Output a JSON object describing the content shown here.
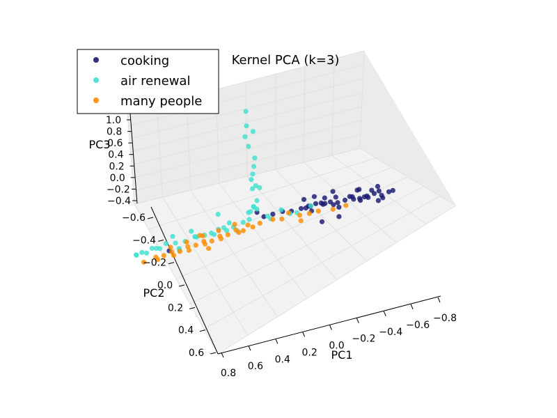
{
  "chart_data": {
    "type": "scatter",
    "title": "Kernel PCA (k=3)",
    "xlabel": "PC1",
    "ylabel": "PC2",
    "zlabel": "PC3",
    "xlim": [
      -0.8,
      0.8
    ],
    "ylim": [
      -0.6,
      0.6
    ],
    "zlim": [
      -0.4,
      1.0
    ],
    "x_ticks": [
      "0.8",
      "0.6",
      "0.4",
      "0.2",
      "0.0",
      "−0.2",
      "−0.4",
      "−0.6",
      "−0.8"
    ],
    "y_ticks": [
      "−0.6",
      "−0.4",
      "−0.2",
      "0.0",
      "0.2",
      "0.4",
      "0.6"
    ],
    "z_ticks": [
      "1.0",
      "0.8",
      "0.6",
      "0.4",
      "0.2",
      "0.0",
      "−0.2",
      "−0.4"
    ],
    "grid": true,
    "legend_position": "top-left",
    "series": [
      {
        "name": "cooking",
        "color": "#191970",
        "points": [
          [
            -0.2,
            -0.1,
            0.0
          ],
          [
            -0.24,
            -0.11,
            0.01
          ],
          [
            -0.28,
            -0.12,
            0.02
          ],
          [
            -0.32,
            -0.13,
            0.0
          ],
          [
            -0.36,
            -0.14,
            0.01
          ],
          [
            -0.4,
            -0.15,
            -0.01
          ],
          [
            -0.44,
            -0.16,
            0.0
          ],
          [
            -0.48,
            -0.17,
            0.02
          ],
          [
            -0.52,
            -0.18,
            -0.01
          ],
          [
            -0.56,
            -0.19,
            0.0
          ],
          [
            -0.6,
            -0.2,
            0.01
          ],
          [
            -0.64,
            -0.21,
            -0.02
          ],
          [
            -0.68,
            -0.22,
            0.0
          ],
          [
            -0.22,
            -0.12,
            -0.02
          ],
          [
            -0.26,
            -0.09,
            0.03
          ],
          [
            -0.3,
            -0.15,
            -0.01
          ],
          [
            -0.34,
            -0.11,
            0.03
          ],
          [
            -0.38,
            -0.17,
            0.02
          ],
          [
            -0.42,
            -0.12,
            -0.02
          ],
          [
            -0.46,
            -0.18,
            0.01
          ],
          [
            -0.5,
            -0.14,
            0.03
          ],
          [
            -0.54,
            -0.2,
            -0.02
          ],
          [
            -0.58,
            -0.16,
            0.02
          ],
          [
            -0.62,
            -0.22,
            0.01
          ],
          [
            -0.66,
            -0.18,
            -0.01
          ],
          [
            -0.7,
            -0.23,
            0.0
          ],
          [
            -0.15,
            -0.08,
            0.0
          ],
          [
            -0.1,
            -0.07,
            0.01
          ],
          [
            -0.05,
            -0.05,
            0.01
          ],
          [
            0.0,
            -0.04,
            0.0
          ],
          [
            -0.45,
            -0.05,
            -0.03
          ],
          [
            -0.35,
            -0.2,
            0.04
          ],
          [
            -0.55,
            -0.12,
            0.04
          ],
          [
            -0.25,
            -0.17,
            0.03
          ],
          [
            -0.6,
            -0.25,
            0.02
          ],
          [
            -0.4,
            -0.09,
            0.04
          ],
          [
            -0.3,
            -0.2,
            -0.02
          ],
          [
            -0.5,
            -0.22,
            0.03
          ],
          [
            -0.2,
            -0.14,
            0.04
          ],
          [
            -0.65,
            -0.14,
            0.01
          ],
          [
            -0.36,
            -0.02,
            -0.04
          ],
          [
            -0.28,
            -0.06,
            0.02
          ],
          [
            -0.48,
            -0.24,
            0.0
          ],
          [
            0.48,
            0.18,
            -0.05
          ],
          [
            0.05,
            -0.06,
            0.02
          ],
          [
            -0.58,
            -0.21,
            0.03
          ]
        ]
      },
      {
        "name": "air renewal",
        "color": "#40e0d0",
        "points": [
          [
            0.01,
            -0.09,
            0.95
          ],
          [
            0.03,
            -0.1,
            0.8
          ],
          [
            -0.02,
            -0.07,
            0.78
          ],
          [
            0.04,
            -0.08,
            0.72
          ],
          [
            0.02,
            -0.06,
            0.65
          ],
          [
            -0.01,
            -0.05,
            0.55
          ],
          [
            0.0,
            -0.04,
            0.48
          ],
          [
            0.01,
            -0.03,
            0.42
          ],
          [
            0.02,
            -0.02,
            0.38
          ],
          [
            0.0,
            -0.02,
            0.32
          ],
          [
            0.03,
            -0.03,
            0.28
          ],
          [
            -0.02,
            -0.02,
            0.3
          ],
          [
            0.0,
            0.0,
            0.2
          ],
          [
            0.02,
            0.01,
            0.15
          ],
          [
            0.04,
            0.02,
            0.12
          ],
          [
            0.06,
            0.01,
            0.1
          ],
          [
            -0.04,
            0.0,
            0.05
          ],
          [
            0.1,
            0.02,
            0.02
          ],
          [
            0.15,
            0.04,
            0.0
          ],
          [
            0.2,
            0.06,
            0.02
          ],
          [
            0.25,
            0.08,
            -0.02
          ],
          [
            0.3,
            0.1,
            0.0
          ],
          [
            0.35,
            0.12,
            0.01
          ],
          [
            0.4,
            0.14,
            -0.01
          ],
          [
            0.45,
            0.16,
            0.0
          ],
          [
            0.5,
            0.18,
            0.02
          ],
          [
            0.55,
            0.2,
            0.0
          ],
          [
            0.6,
            0.22,
            -0.02
          ],
          [
            0.62,
            0.24,
            0.01
          ],
          [
            0.65,
            0.25,
            0.0
          ],
          [
            0.12,
            0.05,
            -0.03
          ],
          [
            0.18,
            0.03,
            0.03
          ],
          [
            0.22,
            0.09,
            0.04
          ],
          [
            0.28,
            0.05,
            -0.04
          ],
          [
            0.33,
            0.14,
            0.03
          ],
          [
            0.38,
            0.1,
            0.04
          ],
          [
            0.42,
            0.18,
            -0.03
          ],
          [
            0.48,
            0.13,
            0.03
          ],
          [
            0.52,
            0.22,
            0.02
          ],
          [
            0.58,
            0.19,
            -0.01
          ],
          [
            0.08,
            -0.02,
            0.0
          ],
          [
            0.05,
            -0.04,
            0.1
          ],
          [
            0.01,
            0.0,
            0.12
          ],
          [
            -0.05,
            -0.02,
            0.0
          ],
          [
            -0.1,
            -0.05,
            0.05
          ],
          [
            -0.15,
            -0.06,
            0.0
          ],
          [
            -0.25,
            -0.12,
            0.0
          ],
          [
            -0.2,
            -0.04,
            0.03
          ],
          [
            0.3,
            0.2,
            0.1
          ],
          [
            0.25,
            0.0,
            0.08
          ],
          [
            0.64,
            0.27,
            0.02
          ],
          [
            0.4,
            0.22,
            0.0
          ],
          [
            0.15,
            0.12,
            0.06
          ]
        ]
      },
      {
        "name": "many people",
        "color": "#ff8c00",
        "points": [
          [
            0.05,
            0.0,
            -0.05
          ],
          [
            0.08,
            0.0,
            -0.03
          ],
          [
            0.1,
            0.02,
            -0.06
          ],
          [
            0.14,
            0.03,
            -0.04
          ],
          [
            0.18,
            0.05,
            -0.06
          ],
          [
            0.22,
            0.07,
            -0.05
          ],
          [
            0.26,
            0.09,
            -0.07
          ],
          [
            0.3,
            0.11,
            -0.05
          ],
          [
            0.34,
            0.13,
            -0.06
          ],
          [
            0.38,
            0.15,
            -0.05
          ],
          [
            0.42,
            0.17,
            -0.07
          ],
          [
            0.46,
            0.19,
            -0.05
          ],
          [
            0.5,
            0.21,
            -0.06
          ],
          [
            0.54,
            0.23,
            -0.05
          ],
          [
            0.11,
            0.06,
            -0.03
          ],
          [
            0.16,
            0.0,
            -0.02
          ],
          [
            0.2,
            0.1,
            -0.04
          ],
          [
            0.24,
            0.04,
            -0.03
          ],
          [
            0.28,
            0.14,
            -0.04
          ],
          [
            0.32,
            0.08,
            -0.03
          ],
          [
            0.36,
            0.18,
            -0.05
          ],
          [
            0.4,
            0.12,
            -0.04
          ],
          [
            0.44,
            0.21,
            -0.06
          ],
          [
            0.48,
            0.16,
            -0.04
          ],
          [
            0.52,
            0.25,
            -0.05
          ],
          [
            -0.05,
            -0.05,
            -0.04
          ],
          [
            -0.1,
            -0.06,
            -0.05
          ],
          [
            -0.2,
            -0.08,
            -0.04
          ],
          [
            -0.25,
            -0.1,
            -0.05
          ],
          [
            -0.3,
            -0.11,
            -0.04
          ],
          [
            -0.38,
            -0.13,
            -0.05
          ],
          [
            -0.45,
            -0.15,
            -0.04
          ],
          [
            -0.22,
            -0.05,
            -0.06
          ],
          [
            -0.12,
            -0.11,
            -0.05
          ],
          [
            0.02,
            -0.03,
            -0.05
          ],
          [
            0.6,
            0.26,
            -0.06
          ],
          [
            0.35,
            0.05,
            -0.06
          ],
          [
            0.25,
            0.16,
            -0.06
          ]
        ]
      }
    ]
  }
}
